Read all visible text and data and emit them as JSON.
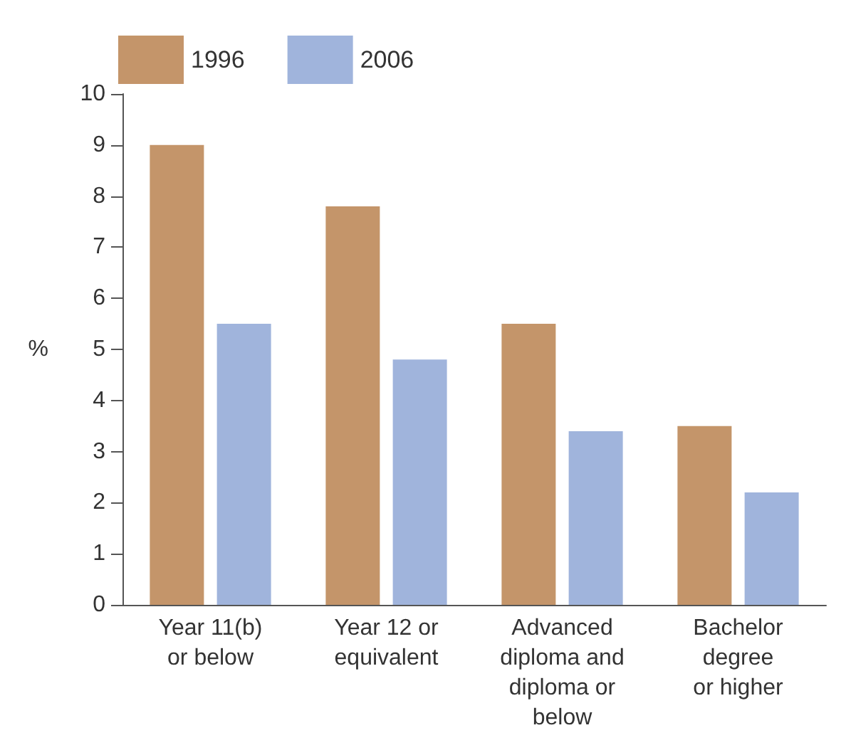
{
  "chart_data": {
    "type": "bar",
    "ylabel": "%",
    "categories": [
      "Year 11(b)\nor below",
      "Year 12 or\nequivalent",
      "Advanced\ndiploma and\ndiploma or\nbelow",
      "Bachelor\ndegree\nor higher"
    ],
    "series": [
      {
        "name": "1996",
        "color": "#c4956a",
        "values": [
          9.0,
          7.8,
          5.5,
          3.5
        ]
      },
      {
        "name": "2006",
        "color": "#a0b4dc",
        "values": [
          5.5,
          4.8,
          3.4,
          2.2
        ]
      }
    ],
    "ylim": [
      0,
      10
    ],
    "yticks": [
      0,
      1,
      2,
      3,
      4,
      5,
      6,
      7,
      8,
      9,
      10
    ],
    "grid": false,
    "legend": "top left"
  }
}
